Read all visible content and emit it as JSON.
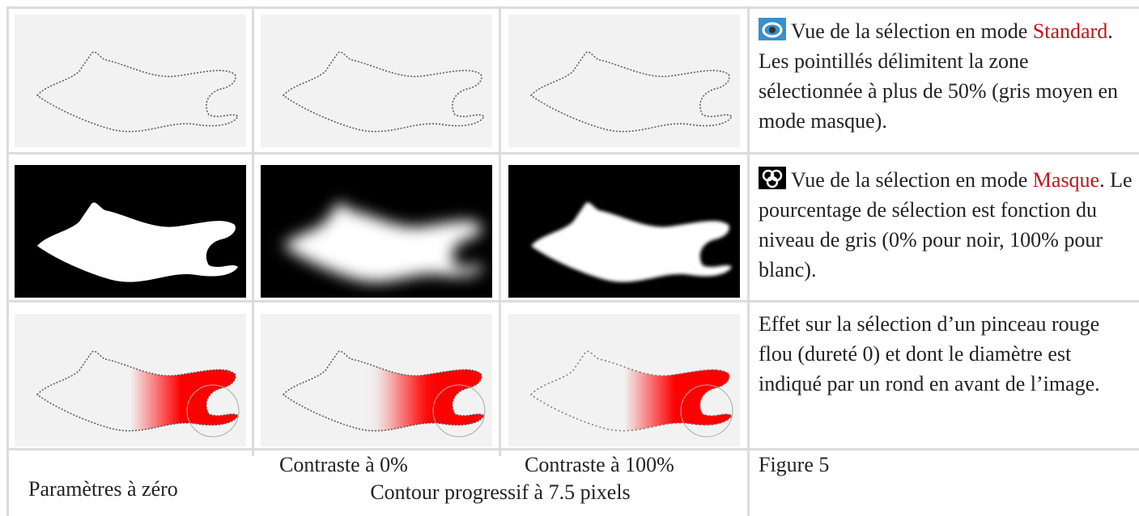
{
  "table": {
    "rows": [
      {
        "before": "Vue de la sélection en mode ",
        "highlight": "Standard",
        "after": ". Les pointillés délimitent la zone sélectionnée à plus de 50% (gris moyen en mode masque)."
      },
      {
        "before": "Vue de la sélection en mode ",
        "highlight": "Masque",
        "after": ". Le pourcentage de sélection est fonction du niveau de gris (0% pour noir, 100% pour blanc)."
      },
      {
        "text": "Effet sur la sélection d’un pinceau rouge flou (dureté 0) et dont le diamètre est indiqué par un rond en avant de l’image."
      }
    ],
    "footer": {
      "col1": "Paramètres à zéro",
      "col2": "Contraste à 0%",
      "col3": "Contraste à 100%",
      "span": "Contour progressif à 7.5 pixels",
      "col4": "Figure 5"
    }
  }
}
